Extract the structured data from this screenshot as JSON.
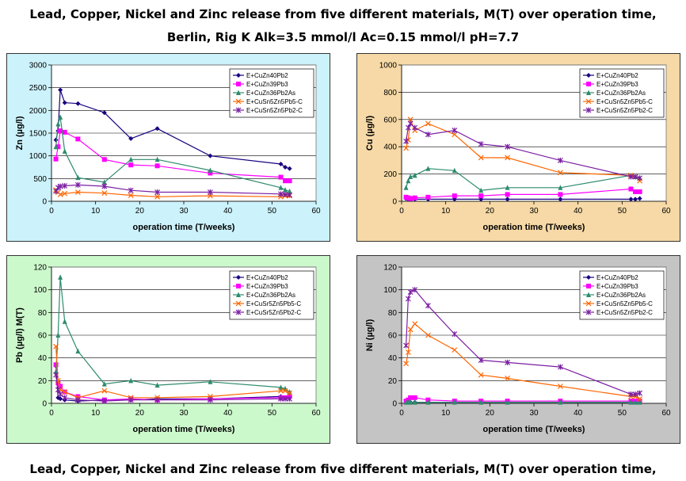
{
  "page": {
    "title_line1": "Lead, Copper, Nickel and Zinc release from five different materials, M(T) over operation time,",
    "title_line2": "Berlin, Rig K Alk=3.5 mmol/l Ac=0.15 mmol/l pH=7.7",
    "title_line3": "Lead, Copper, Nickel and Zinc release from five different materials, M(T) over operation time,"
  },
  "chart_data": [
    {
      "id": "zn",
      "type": "line",
      "background": "#ccf2fb",
      "xlabel": "operation time (T/weeks)",
      "ylabel": "Zn (µg/l)",
      "xlim": [
        0,
        60
      ],
      "ylim": [
        0,
        3000
      ],
      "xticks": [
        0,
        10,
        20,
        30,
        40,
        50,
        60
      ],
      "yticks": [
        0,
        500,
        1000,
        1500,
        2000,
        2500,
        3000
      ],
      "xtick_labels": [
        "0",
        "10",
        "20",
        "30",
        "40",
        "50",
        "60"
      ],
      "ytick_labels": [
        "0",
        "500",
        "1000",
        "1500",
        "2000",
        "2500",
        "3000"
      ],
      "grid": "horizontal",
      "legend": "top-right",
      "series": [
        {
          "name": "E+CuZn40Pb2",
          "color": "#1a0080",
          "marker": "diamond",
          "x": [
            1,
            1.5,
            2,
            3,
            6,
            12,
            18,
            24,
            36,
            52,
            53,
            54
          ],
          "y": [
            1350,
            1550,
            2450,
            2170,
            2150,
            1950,
            1380,
            1600,
            1000,
            820,
            750,
            720
          ]
        },
        {
          "name": "E+CuZn39Pb3",
          "color": "#ff00ff",
          "marker": "square",
          "x": [
            1,
            1.5,
            2,
            3,
            6,
            12,
            18,
            24,
            36,
            52,
            53,
            54
          ],
          "y": [
            930,
            1200,
            1550,
            1520,
            1370,
            920,
            800,
            780,
            620,
            530,
            450,
            450
          ]
        },
        {
          "name": "E+CuZn36Pb2As",
          "color": "#2e8b6e",
          "marker": "triangle",
          "x": [
            1,
            1.5,
            2,
            3,
            6,
            12,
            18,
            24,
            36,
            52,
            53,
            54
          ],
          "y": [
            1200,
            1700,
            1850,
            1100,
            520,
            420,
            920,
            920,
            680,
            300,
            250,
            220
          ]
        },
        {
          "name": "E+CuSn5Zn5Pb5-C",
          "color": "#ff6600",
          "marker": "x",
          "x": [
            1,
            1.5,
            2,
            3,
            6,
            12,
            18,
            24,
            36,
            52,
            53,
            54
          ],
          "y": [
            250,
            200,
            150,
            170,
            200,
            180,
            130,
            100,
            120,
            100,
            120,
            120
          ]
        },
        {
          "name": "E+CuSn5Zn5Pb2-C",
          "color": "#7a1fa2",
          "marker": "star",
          "x": [
            1,
            1.5,
            2,
            3,
            6,
            12,
            18,
            24,
            36,
            52,
            53,
            54
          ],
          "y": [
            220,
            300,
            330,
            340,
            360,
            330,
            240,
            200,
            200,
            160,
            150,
            140
          ]
        }
      ]
    },
    {
      "id": "cu",
      "type": "line",
      "background": "#f6d9a6",
      "xlabel": "operation time (T/weeks)",
      "ylabel": "Cu (µg/l)",
      "xlim": [
        0,
        60
      ],
      "ylim": [
        0,
        1000
      ],
      "xticks": [
        0,
        10,
        20,
        30,
        40,
        50,
        60
      ],
      "yticks": [
        0,
        200,
        400,
        600,
        800,
        1000
      ],
      "xtick_labels": [
        "0",
        "10",
        "20",
        "30",
        "40",
        "50",
        "60"
      ],
      "ytick_labels": [
        "0",
        "200",
        "400",
        "600",
        "800",
        "1000"
      ],
      "grid": "horizontal",
      "legend": "top-right",
      "series": [
        {
          "name": "E+CuZn40Pb2",
          "color": "#1a0080",
          "marker": "diamond",
          "x": [
            1,
            1.5,
            2,
            3,
            6,
            12,
            18,
            24,
            36,
            52,
            53,
            54
          ],
          "y": [
            20,
            15,
            15,
            15,
            15,
            15,
            15,
            15,
            15,
            15,
            15,
            20
          ]
        },
        {
          "name": "E+CuZn39Pb3",
          "color": "#ff00ff",
          "marker": "square",
          "x": [
            1,
            1.5,
            2,
            3,
            6,
            12,
            18,
            24,
            36,
            52,
            53,
            54
          ],
          "y": [
            30,
            25,
            20,
            25,
            30,
            40,
            40,
            50,
            50,
            90,
            70,
            70
          ]
        },
        {
          "name": "E+CuZn36Pb2As",
          "color": "#2e8b6e",
          "marker": "triangle",
          "x": [
            1,
            1.5,
            2,
            3,
            6,
            12,
            18,
            24,
            36,
            52,
            53,
            54
          ],
          "y": [
            100,
            150,
            180,
            190,
            240,
            225,
            80,
            100,
            100,
            190,
            180,
            170
          ]
        },
        {
          "name": "E+CuSn5Zn5Pb5-C",
          "color": "#ff6600",
          "marker": "x",
          "x": [
            1,
            1.5,
            2,
            3,
            6,
            12,
            18,
            24,
            36,
            52,
            53,
            54
          ],
          "y": [
            390,
            450,
            600,
            520,
            570,
            490,
            320,
            320,
            210,
            190,
            180,
            150
          ]
        },
        {
          "name": "E+CuSn5Zn5Pb2-C",
          "color": "#7a1fa2",
          "marker": "star",
          "x": [
            1,
            1.5,
            2,
            3,
            6,
            12,
            18,
            24,
            36,
            52,
            53,
            54
          ],
          "y": [
            440,
            540,
            570,
            540,
            490,
            520,
            420,
            400,
            300,
            180,
            180,
            170
          ]
        }
      ]
    },
    {
      "id": "pb",
      "type": "line",
      "background": "#ccf9cc",
      "xlabel": "operation time (T/weeks)",
      "ylabel": "Pb (µg/l) M(T)",
      "xlim": [
        0,
        60
      ],
      "ylim": [
        0,
        120
      ],
      "xticks": [
        0,
        10,
        20,
        30,
        40,
        50,
        60
      ],
      "yticks": [
        0,
        20,
        40,
        60,
        80,
        100,
        120
      ],
      "xtick_labels": [
        "0",
        "10",
        "20",
        "30",
        "40",
        "50",
        "60"
      ],
      "ytick_labels": [
        "0",
        "20",
        "40",
        "60",
        "80",
        "100",
        "120"
      ],
      "grid": "horizontal",
      "legend": "top-right",
      "series": [
        {
          "name": "E+CuZn40Pb2",
          "color": "#1a0080",
          "marker": "diamond",
          "x": [
            1,
            1.5,
            2,
            3,
            6,
            12,
            18,
            24,
            36,
            52,
            53,
            54
          ],
          "y": [
            33,
            5,
            4,
            3,
            2,
            3,
            3,
            4,
            4,
            6,
            5,
            5
          ]
        },
        {
          "name": "E+CuZn39Pb3",
          "color": "#ff00ff",
          "marker": "square",
          "x": [
            1,
            1.5,
            2,
            3,
            6,
            12,
            18,
            24,
            36,
            52,
            53,
            54
          ],
          "y": [
            34,
            18,
            15,
            10,
            6,
            3,
            4,
            3,
            4,
            5,
            5,
            6
          ]
        },
        {
          "name": "E+CuZn36Pb2As",
          "color": "#2e8b6e",
          "marker": "triangle",
          "x": [
            1,
            1.5,
            2,
            3,
            6,
            12,
            18,
            24,
            36,
            52,
            53,
            54
          ],
          "y": [
            28,
            60,
            111,
            72,
            46,
            17,
            20,
            16,
            19,
            14,
            13,
            10
          ]
        },
        {
          "name": "E+CuSr5Zn5Pb5-C",
          "color": "#ff6600",
          "marker": "x",
          "x": [
            1,
            1.5,
            2,
            3,
            6,
            12,
            18,
            24,
            36,
            52,
            53,
            54
          ],
          "y": [
            50,
            20,
            12,
            10,
            5,
            11,
            5,
            5,
            6,
            11,
            11,
            9
          ]
        },
        {
          "name": "E+CuSr5Zn5Pb2-C",
          "color": "#7a1fa2",
          "marker": "star",
          "x": [
            1,
            1.5,
            2,
            3,
            6,
            12,
            18,
            24,
            36,
            52,
            53,
            54
          ],
          "y": [
            25,
            12,
            8,
            5,
            3,
            2,
            3,
            3,
            3,
            4,
            4,
            4
          ]
        }
      ]
    },
    {
      "id": "ni",
      "type": "line",
      "background": "#c4c4c4",
      "xlabel": "operation time (T/weeks)",
      "ylabel": "Ni (µg/l)",
      "xlim": [
        0,
        60
      ],
      "ylim": [
        0,
        120
      ],
      "xticks": [
        0,
        10,
        20,
        30,
        40,
        50,
        60
      ],
      "yticks": [
        0,
        20,
        40,
        60,
        80,
        100,
        120
      ],
      "xtick_labels": [
        "0",
        "10",
        "20",
        "30",
        "40",
        "50",
        "60"
      ],
      "ytick_labels": [
        "0",
        "20",
        "40",
        "60",
        "80",
        "100",
        "120"
      ],
      "grid": "horizontal",
      "legend": "top-right",
      "series": [
        {
          "name": "E+CuZn40Pb2",
          "color": "#1a0080",
          "marker": "diamond",
          "x": [
            1,
            1.5,
            2,
            3,
            6,
            12,
            18,
            24,
            36,
            52,
            53,
            54
          ],
          "y": [
            1,
            1,
            1,
            1,
            1,
            1,
            1,
            1,
            1,
            1,
            1,
            1
          ]
        },
        {
          "name": "E+CuZn39Pb3",
          "color": "#ff00ff",
          "marker": "square",
          "x": [
            1,
            1.5,
            2,
            3,
            6,
            12,
            18,
            24,
            36,
            52,
            53,
            54
          ],
          "y": [
            2,
            3,
            5,
            5,
            3,
            2,
            2,
            2,
            2,
            2,
            2,
            2
          ]
        },
        {
          "name": "E+CuZn36Pb2As",
          "color": "#2e8b6e",
          "marker": "triangle",
          "x": [
            1,
            1.5,
            2,
            3,
            6,
            12,
            18,
            24,
            36,
            52,
            53,
            54
          ],
          "y": [
            1,
            1,
            1,
            1,
            1,
            1,
            1,
            1,
            1,
            1,
            1,
            1
          ]
        },
        {
          "name": "E+CuSn5Zn5Pb5-C",
          "color": "#ff6600",
          "marker": "x",
          "x": [
            1,
            1.5,
            2,
            3,
            6,
            12,
            18,
            24,
            36,
            52,
            53,
            54
          ],
          "y": [
            35,
            45,
            65,
            70,
            60,
            47,
            25,
            22,
            15,
            6,
            6,
            4
          ]
        },
        {
          "name": "E+CuSn5Zn5Pb2-C",
          "color": "#7a1fa2",
          "marker": "star",
          "x": [
            1,
            1.5,
            2,
            3,
            6,
            12,
            18,
            24,
            36,
            52,
            53,
            54
          ],
          "y": [
            51,
            92,
            98,
            100,
            86,
            61,
            38,
            36,
            32,
            8,
            8,
            9
          ]
        }
      ]
    }
  ]
}
